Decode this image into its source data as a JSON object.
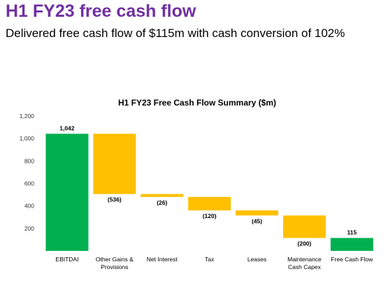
{
  "slide": {
    "title": "H1 FY23 free cash flow",
    "subtitle": "Delivered free cash flow of $115m with cash conversion of 102%"
  },
  "colors": {
    "total": "#00b050",
    "decrease": "#ffc000",
    "title": "#7030a0"
  },
  "chart_data": {
    "type": "bar",
    "subtype": "waterfall",
    "title": "H1 FY23 Free Cash Flow Summary ($m)",
    "xlabel": "",
    "ylabel": "",
    "ylim": [
      0,
      1200
    ],
    "yticks": [
      200,
      400,
      600,
      800,
      "1,000",
      "1,200"
    ],
    "ytick_values": [
      200,
      400,
      600,
      800,
      1000,
      1200
    ],
    "grid": false,
    "legend": "none",
    "categories": [
      [
        "EBITDAI"
      ],
      [
        "Other Gains &",
        "Provisions"
      ],
      [
        "Net Interest"
      ],
      [
        "Tax"
      ],
      [
        "Leases"
      ],
      [
        "Maintenance",
        "Cash Capex"
      ],
      [
        "Free Cash Flow"
      ]
    ],
    "values": [
      1042,
      -536,
      -26,
      -120,
      -45,
      -200,
      115
    ],
    "kinds": [
      "total",
      "decrease",
      "decrease",
      "decrease",
      "decrease",
      "decrease",
      "total"
    ],
    "data_labels": [
      "1,042",
      "(536)",
      "(26)",
      "(120)",
      "(45)",
      "(200)",
      "115"
    ]
  }
}
